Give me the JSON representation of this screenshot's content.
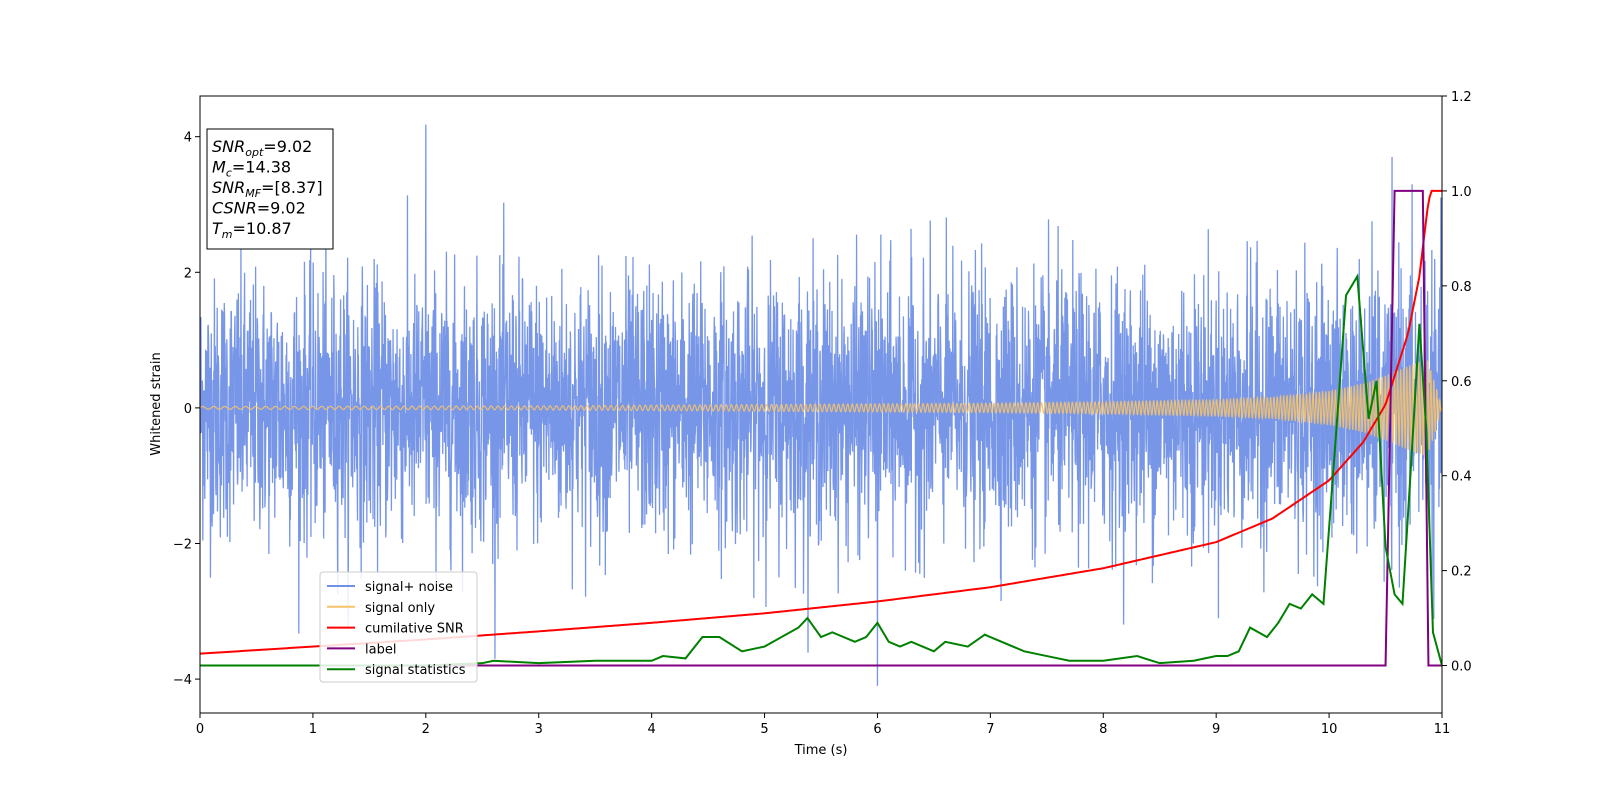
{
  "chart_data": {
    "type": "line",
    "title": "",
    "xlabel": "Time (s)",
    "ylabel": "Whitened strain",
    "xlim": [
      0,
      11
    ],
    "ylim": [
      -4.5,
      4.6
    ],
    "y2lim": [
      -0.1,
      1.2
    ],
    "grid": false,
    "legend_position": "lower-left",
    "x_ticks": [
      0,
      1,
      2,
      3,
      4,
      5,
      6,
      7,
      8,
      9,
      10,
      11
    ],
    "y_ticks": [
      -4,
      -2,
      0,
      2,
      4
    ],
    "y_tick_labels": [
      "−4",
      "−2",
      "0",
      "2",
      "4"
    ],
    "y2_ticks": [
      0.0,
      0.2,
      0.4,
      0.6,
      0.8,
      1.0,
      1.2
    ],
    "y2_tick_labels": [
      "0.0",
      "0.2",
      "0.4",
      "0.6",
      "0.8",
      "1.0",
      "1.2"
    ],
    "info_box": [
      {
        "var": "SNR",
        "sub": "opt",
        "value": "=9.02"
      },
      {
        "var": "M",
        "sub": "c",
        "value": "=14.38"
      },
      {
        "var": "SNR",
        "sub": "MF",
        "value": "=[8.37]"
      },
      {
        "var": "CSNR",
        "sub": "",
        "value": "=9.02"
      },
      {
        "var": "T",
        "sub": "m",
        "value": "=10.87"
      }
    ],
    "series": [
      {
        "name": "signal+ noise",
        "axis": "left",
        "color": "#7090e6",
        "noise_sigma": 0.95,
        "noise_max_peak": 4.18,
        "noise_min_peak": -4.1
      },
      {
        "name": "signal only",
        "axis": "left",
        "color": "#f5c26b",
        "x": [
          0,
          3,
          5,
          7,
          8,
          9,
          9.5,
          10,
          10.3,
          10.5,
          10.7,
          10.87,
          10.95,
          11
        ],
        "envelope": [
          0.02,
          0.03,
          0.05,
          0.07,
          0.09,
          0.12,
          0.16,
          0.25,
          0.36,
          0.48,
          0.62,
          0.72,
          0.3,
          0.0
        ]
      },
      {
        "name": "cumilative SNR",
        "axis": "right",
        "color": "#ff0000",
        "x": [
          0,
          1,
          2,
          3,
          4,
          5,
          6,
          7,
          8,
          9,
          9.5,
          10,
          10.3,
          10.5,
          10.7,
          10.8,
          10.87,
          10.9,
          11
        ],
        "y": [
          0.025,
          0.04,
          0.055,
          0.072,
          0.09,
          0.11,
          0.135,
          0.165,
          0.205,
          0.26,
          0.31,
          0.39,
          0.47,
          0.55,
          0.7,
          0.82,
          0.96,
          1.0,
          1.0
        ]
      },
      {
        "name": "label",
        "axis": "right",
        "color": "#800080",
        "x": [
          0,
          10.5,
          10.58,
          10.83,
          10.88,
          11
        ],
        "y": [
          0.0,
          0.0,
          1.0,
          1.0,
          0.0,
          0.0
        ]
      },
      {
        "name": "signal statistics",
        "axis": "right",
        "color": "#008000",
        "x": [
          0,
          1,
          2,
          2.5,
          2.6,
          3,
          3.5,
          4,
          4.1,
          4.3,
          4.45,
          4.6,
          4.8,
          5,
          5.15,
          5.3,
          5.38,
          5.5,
          5.6,
          5.8,
          5.9,
          6,
          6.1,
          6.2,
          6.3,
          6.5,
          6.6,
          6.8,
          6.95,
          7.1,
          7.3,
          7.5,
          7.7,
          8,
          8.3,
          8.5,
          8.8,
          9,
          9.1,
          9.2,
          9.3,
          9.45,
          9.55,
          9.65,
          9.75,
          9.85,
          9.95,
          10.05,
          10.15,
          10.25,
          10.35,
          10.42,
          10.5,
          10.58,
          10.65,
          10.72,
          10.8,
          10.86,
          10.92,
          11
        ],
        "y": [
          0.0,
          0.0,
          0.0,
          0.005,
          0.01,
          0.005,
          0.01,
          0.01,
          0.02,
          0.015,
          0.06,
          0.06,
          0.03,
          0.04,
          0.06,
          0.08,
          0.1,
          0.06,
          0.07,
          0.05,
          0.06,
          0.09,
          0.05,
          0.04,
          0.05,
          0.03,
          0.05,
          0.04,
          0.065,
          0.05,
          0.03,
          0.02,
          0.01,
          0.01,
          0.02,
          0.005,
          0.01,
          0.02,
          0.02,
          0.03,
          0.08,
          0.06,
          0.09,
          0.13,
          0.12,
          0.15,
          0.13,
          0.45,
          0.78,
          0.82,
          0.52,
          0.6,
          0.25,
          0.15,
          0.13,
          0.4,
          0.72,
          0.5,
          0.07,
          0.0
        ]
      }
    ]
  }
}
